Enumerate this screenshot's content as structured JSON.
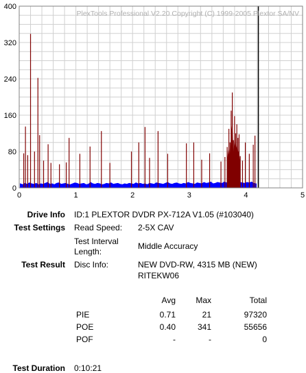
{
  "chart_data": {
    "type": "bar",
    "title": "PlexTools Professional V2.20 Copyright (C) 1999-2005 Plextor SA/NV",
    "xlabel": "",
    "ylabel": "",
    "xlim": [
      0,
      5
    ],
    "ylim": [
      0,
      400
    ],
    "x_ticks": [
      "0",
      "1",
      "2",
      "3",
      "4",
      "5"
    ],
    "y_ticks": [
      "400",
      "320",
      "240",
      "160",
      "80",
      "0"
    ],
    "grid": true,
    "series": [
      {
        "color": "#0000ff",
        "x": [
          0.02,
          0.06,
          0.1,
          0.14,
          0.18,
          0.22,
          0.26,
          0.3,
          0.34,
          0.38,
          0.42,
          0.46,
          0.5,
          0.54,
          0.58,
          0.62,
          0.66,
          0.7,
          0.74,
          0.78,
          0.82,
          0.86,
          0.9,
          0.94,
          0.98,
          1.02,
          1.06,
          1.1,
          1.14,
          1.18,
          1.22,
          1.26,
          1.3,
          1.34,
          1.38,
          1.42,
          1.46,
          1.5,
          1.54,
          1.58,
          1.62,
          1.66,
          1.7,
          1.74,
          1.78,
          1.82,
          1.86,
          1.9,
          1.94,
          1.98,
          2.02,
          2.06,
          2.1,
          2.14,
          2.18,
          2.22,
          2.26,
          2.3,
          2.34,
          2.38,
          2.42,
          2.46,
          2.5,
          2.54,
          2.58,
          2.62,
          2.66,
          2.7,
          2.74,
          2.78,
          2.82,
          2.86,
          2.9,
          2.94,
          2.98,
          3.02,
          3.06,
          3.1,
          3.14,
          3.18,
          3.22,
          3.26,
          3.3,
          3.34,
          3.38,
          3.42,
          3.46,
          3.5,
          3.54,
          3.58,
          3.62,
          3.66,
          3.7,
          3.74,
          3.78,
          3.82,
          3.86,
          3.9,
          3.94,
          3.98,
          4.02,
          4.06,
          4.1,
          4.14,
          4.18
        ],
        "values": [
          9,
          7,
          10,
          8,
          11,
          9,
          8,
          10,
          7,
          9,
          8,
          10,
          12,
          8,
          9,
          7,
          10,
          11,
          8,
          9,
          10,
          8,
          7,
          9,
          11,
          10,
          8,
          9,
          10,
          7,
          8,
          12,
          9,
          8,
          10,
          9,
          7,
          8,
          10,
          9,
          11,
          8,
          9,
          10,
          8,
          7,
          9,
          8,
          10,
          9,
          8,
          11,
          9,
          10,
          8,
          9,
          7,
          10,
          9,
          8,
          11,
          10,
          9,
          8,
          10,
          12,
          9,
          8,
          10,
          11,
          9,
          8,
          10,
          9,
          12,
          10,
          9,
          8,
          11,
          10,
          9,
          12,
          10,
          11,
          13,
          9,
          10,
          12,
          11,
          10,
          13,
          11,
          10,
          12,
          11,
          13,
          10,
          12,
          11,
          10,
          12,
          11,
          13,
          10,
          9
        ]
      },
      {
        "color": "#800000",
        "x": [
          0.08,
          0.11,
          0.15,
          0.2,
          0.27,
          0.33,
          0.36,
          0.43,
          0.51,
          0.56,
          0.71,
          0.83,
          0.88,
          1.07,
          1.25,
          1.45,
          1.6,
          1.98,
          2.11,
          2.22,
          2.3,
          2.45,
          2.62,
          2.95,
          3.08,
          3.22,
          3.36,
          3.56,
          3.63,
          3.67,
          3.7,
          3.72,
          3.74,
          3.76,
          3.78,
          3.8,
          3.82,
          3.84,
          3.86,
          3.88,
          3.9,
          3.94,
          3.99,
          4.06,
          4.13,
          4.16
        ],
        "values": [
          76,
          135,
          72,
          339,
          80,
          242,
          116,
          60,
          96,
          55,
          52,
          56,
          110,
          75,
          91,
          125,
          55,
          80,
          100,
          134,
          66,
          125,
          75,
          98,
          100,
          62,
          76,
          58,
          68,
          90,
          130,
          100,
          170,
          210,
          105,
          158,
          120,
          140,
          110,
          118,
          70,
          60,
          100,
          75,
          95,
          115
        ]
      },
      {
        "color": "#000000",
        "x": [
          4.22
        ],
        "values": [
          400
        ]
      }
    ]
  },
  "info": {
    "drive_label": "Drive Info",
    "drive_value": "ID:1 PLEXTOR DVDR PX-712A V1.05 (#103040)",
    "settings_label": "Test Settings",
    "read_speed_label": "Read Speed:",
    "read_speed_value": "2-5X CAV",
    "interval_label_1": "Test Interval",
    "interval_label_2": "Length:",
    "interval_value": "Middle Accuracy",
    "result_label": "Test Result",
    "disc_info_label": "Disc Info:",
    "disc_info_line1": "NEW DVD-RW, 4315 MB (NEW)",
    "disc_info_line2": "RITEKW06",
    "duration_label": "Test Duration",
    "duration_value": "0:10:21"
  },
  "results": {
    "headers": [
      "",
      "Avg",
      "Max",
      "Total"
    ],
    "rows": [
      [
        "PIE",
        "0.71",
        "21",
        "97320"
      ],
      [
        "POE",
        "0.40",
        "341",
        "55656"
      ],
      [
        "POF",
        "-",
        "-",
        "0"
      ]
    ]
  }
}
